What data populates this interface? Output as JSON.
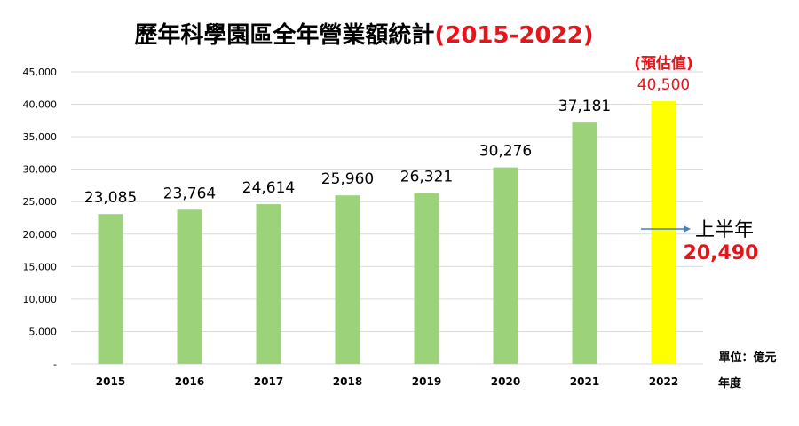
{
  "chart_data": {
    "type": "bar",
    "title_main": "歷年科學園區全年營業額統計",
    "title_suffix": "(2015-2022)",
    "categories": [
      "2015",
      "2016",
      "2017",
      "2018",
      "2019",
      "2020",
      "2021",
      "2022"
    ],
    "values": [
      23085,
      23764,
      24614,
      25960,
      26321,
      30276,
      37181,
      40500
    ],
    "value_labels": [
      "23,085",
      "23,764",
      "24,614",
      "25,960",
      "26,321",
      "30,276",
      "37,181",
      "40,500"
    ],
    "estimate_index": 7,
    "estimate_note": "(預估值)",
    "ylim": [
      0,
      45000
    ],
    "yticks": [
      0,
      5000,
      10000,
      15000,
      20000,
      25000,
      30000,
      35000,
      40000,
      45000
    ],
    "ytick_labels": [
      "-",
      "5,000",
      "10,000",
      "15,000",
      "20,000",
      "25,000",
      "30,000",
      "35,000",
      "40,000",
      "45,000"
    ],
    "unit_label": "單位：億元",
    "xlabel": "年度",
    "annotation": {
      "label": "上半年",
      "value_label": "20,490",
      "value": 20490
    },
    "grid": true,
    "colors": {
      "bar": "#9BD27A",
      "bar_estimate": "#FFFF00",
      "highlight": "#E8141B",
      "grid": "#D9D9D9",
      "arrow": "#4A7EBB",
      "text": "#000000"
    }
  }
}
